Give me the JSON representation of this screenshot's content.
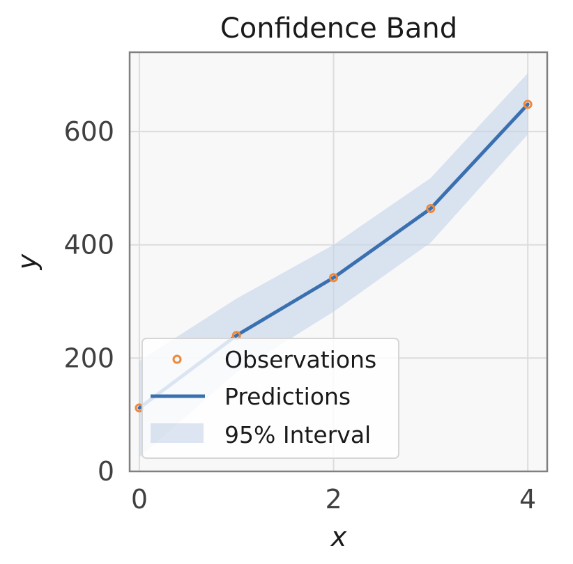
{
  "chart_data": {
    "type": "line",
    "title": "Confidence Band",
    "xlabel": "x",
    "ylabel": "y",
    "xlim": [
      -0.1,
      4.2
    ],
    "ylim": [
      0,
      740
    ],
    "x_ticks": [
      0,
      2,
      4
    ],
    "y_ticks": [
      0,
      200,
      400,
      600
    ],
    "grid": true,
    "legend_position": "lower-left",
    "series": [
      {
        "name": "Observations",
        "kind": "scatter",
        "color": "#f0883a",
        "x": [
          0,
          1,
          2,
          3,
          4
        ],
        "y": [
          112,
          240,
          342,
          464,
          648
        ]
      },
      {
        "name": "Predictions",
        "kind": "line",
        "color": "#3a70b0",
        "x": [
          0,
          1,
          2,
          3,
          4
        ],
        "y": [
          112,
          240,
          342,
          464,
          648
        ]
      },
      {
        "name": "95% Interval",
        "kind": "band",
        "color": "#c5d3e8",
        "x": [
          0,
          1,
          2,
          3,
          4
        ],
        "lower": [
          25,
          175,
          282,
          404,
          595
        ],
        "upper": [
          195,
          305,
          400,
          518,
          703
        ]
      }
    ]
  }
}
